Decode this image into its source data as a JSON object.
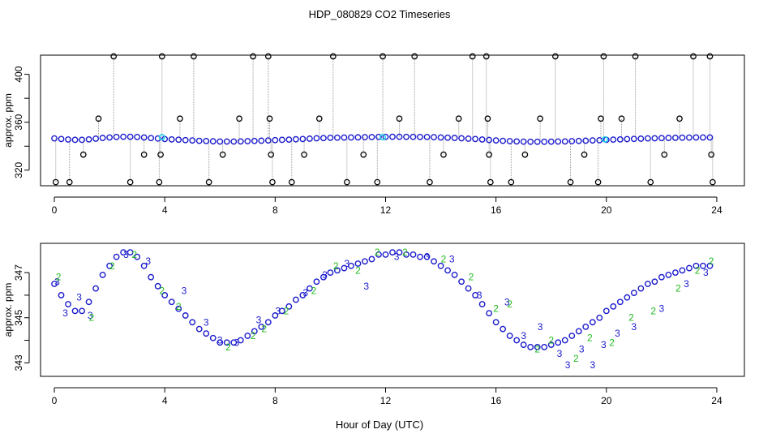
{
  "title": "HDP_080829  CO2 Timeseries",
  "xlabel": "Hour of Day (UTC)",
  "colors": {
    "blue": "#1a1acc",
    "cyan": "#22d3e6",
    "green": "#22bb22",
    "black": "#000000",
    "grey": "#9a9a9a"
  },
  "chart_data": [
    {
      "type": "scatter",
      "title": "HDP_080829  CO2 Timeseries",
      "xlabel": "",
      "ylabel": "approx. ppm",
      "xlim": [
        -0.5,
        25
      ],
      "ylim": [
        307,
        416
      ],
      "xticks": [
        0,
        4,
        8,
        12,
        16,
        20,
        24
      ],
      "yticks": [
        320,
        360,
        400
      ],
      "yminor": [
        340,
        380
      ],
      "grid": false,
      "series": [
        {
          "marker": "circle-blue",
          "description_of_values": "",
          "x": [
            0.0,
            0.25,
            0.5,
            0.75,
            1.0,
            1.25,
            1.5,
            1.75,
            2.0,
            2.25,
            2.5,
            2.75,
            3.0,
            3.25,
            3.5,
            3.75,
            4.0,
            4.25,
            4.5,
            4.75,
            5.0,
            5.25,
            5.5,
            5.75,
            6.0,
            6.25,
            6.5,
            6.75,
            7.0,
            7.25,
            7.5,
            7.75,
            8.0,
            8.25,
            8.5,
            8.75,
            9.0,
            9.25,
            9.5,
            9.75,
            10.0,
            10.25,
            10.5,
            10.75,
            11.0,
            11.25,
            11.5,
            11.75,
            12.0,
            12.25,
            12.5,
            12.75,
            13.0,
            13.25,
            13.5,
            13.75,
            14.0,
            14.25,
            14.5,
            14.75,
            15.0,
            15.25,
            15.5,
            15.75,
            16.0,
            16.25,
            16.5,
            16.75,
            17.0,
            17.25,
            17.5,
            17.75,
            18.0,
            18.25,
            18.5,
            18.75,
            19.0,
            19.25,
            19.5,
            19.75,
            20.0,
            20.25,
            20.5,
            20.75,
            21.0,
            21.25,
            21.5,
            21.75,
            22.0,
            22.25,
            22.5,
            22.75,
            23.0,
            23.25,
            23.5,
            23.75
          ],
          "y": [
            346.5,
            346.0,
            345.6,
            345.3,
            345.3,
            345.7,
            346.3,
            346.9,
            347.3,
            347.7,
            347.9,
            347.9,
            347.7,
            347.3,
            346.8,
            346.4,
            346.0,
            345.7,
            345.4,
            345.1,
            344.8,
            344.5,
            344.3,
            344.1,
            343.9,
            343.9,
            343.9,
            344.0,
            344.2,
            344.4,
            344.6,
            344.8,
            345.1,
            345.3,
            345.5,
            345.8,
            346.0,
            346.3,
            346.6,
            346.8,
            347.0,
            347.1,
            347.2,
            347.3,
            347.4,
            347.5,
            347.6,
            347.8,
            347.8,
            347.9,
            347.9,
            347.8,
            347.8,
            347.7,
            347.7,
            347.5,
            347.3,
            347.1,
            346.9,
            346.6,
            346.3,
            346.0,
            345.6,
            345.2,
            344.8,
            344.5,
            344.2,
            344.0,
            343.8,
            343.7,
            343.7,
            343.7,
            343.8,
            343.9,
            344.0,
            344.2,
            344.4,
            344.6,
            344.8,
            345.0,
            345.3,
            345.5,
            345.7,
            345.9,
            346.1,
            346.3,
            346.5,
            346.6,
            346.8,
            346.9,
            347.0,
            347.1,
            347.2,
            347.3,
            347.3,
            347.3
          ]
        },
        {
          "marker": "circle-black-outlier",
          "description_of_values": "",
          "x": [
            0.05,
            0.55,
            1.05,
            1.6,
            2.15,
            2.75,
            3.25,
            3.8,
            3.85,
            3.9,
            4.55,
            5.05,
            5.6,
            6.1,
            6.7,
            7.2,
            7.75,
            7.8,
            7.85,
            7.9,
            8.6,
            9.05,
            9.6,
            10.1,
            10.6,
            11.2,
            11.7,
            11.9,
            12.5,
            13.05,
            13.6,
            14.1,
            14.65,
            15.15,
            15.65,
            15.7,
            15.75,
            15.8,
            16.55,
            17.05,
            17.6,
            18.15,
            18.7,
            19.2,
            19.7,
            19.8,
            19.9,
            20.55,
            21.05,
            21.6,
            22.1,
            22.65,
            23.15,
            23.75,
            23.8,
            23.85
          ],
          "y": [
            310,
            310,
            333,
            363,
            415,
            310,
            333,
            310,
            333,
            415,
            363,
            415,
            310,
            333,
            363,
            415,
            415,
            363,
            333,
            310,
            310,
            333,
            363,
            415,
            310,
            333,
            310,
            415,
            363,
            415,
            310,
            333,
            363,
            415,
            415,
            363,
            333,
            310,
            310,
            333,
            363,
            415,
            310,
            333,
            310,
            363,
            415,
            363,
            415,
            310,
            333,
            363,
            415,
            415,
            333,
            310
          ]
        },
        {
          "marker": "circle-cyan",
          "description_of_values": "",
          "x": [
            3.9,
            11.9,
            19.95
          ],
          "y": [
            347.5,
            347.5,
            345.7
          ]
        }
      ]
    },
    {
      "type": "scatter",
      "title": "",
      "xlabel": "Hour of Day (UTC)",
      "ylabel": "approx. ppm",
      "xlim": [
        -0.5,
        25
      ],
      "ylim": [
        342.4,
        348.3
      ],
      "xticks": [
        0,
        4,
        8,
        12,
        16,
        20,
        24
      ],
      "yticks": [
        343,
        345,
        347
      ],
      "yminor": [
        344,
        346
      ],
      "grid": false,
      "series": [
        {
          "marker": "circle-blue",
          "description_of_values": "",
          "x": [
            0.0,
            0.25,
            0.5,
            0.75,
            1.0,
            1.25,
            1.5,
            1.75,
            2.0,
            2.25,
            2.5,
            2.75,
            3.0,
            3.25,
            3.5,
            3.75,
            4.0,
            4.25,
            4.5,
            4.75,
            5.0,
            5.25,
            5.5,
            5.75,
            6.0,
            6.25,
            6.5,
            6.75,
            7.0,
            7.25,
            7.5,
            7.75,
            8.0,
            8.25,
            8.5,
            8.75,
            9.0,
            9.25,
            9.5,
            9.75,
            10.0,
            10.25,
            10.5,
            10.75,
            11.0,
            11.25,
            11.5,
            11.75,
            12.0,
            12.25,
            12.5,
            12.75,
            13.0,
            13.25,
            13.5,
            13.75,
            14.0,
            14.25,
            14.5,
            14.75,
            15.0,
            15.25,
            15.5,
            15.75,
            16.0,
            16.25,
            16.5,
            16.75,
            17.0,
            17.25,
            17.5,
            17.75,
            18.0,
            18.25,
            18.5,
            18.75,
            19.0,
            19.25,
            19.5,
            19.75,
            20.0,
            20.25,
            20.5,
            20.75,
            21.0,
            21.25,
            21.5,
            21.75,
            22.0,
            22.25,
            22.5,
            22.75,
            23.0,
            23.25,
            23.5,
            23.75
          ],
          "y": [
            346.5,
            346.0,
            345.6,
            345.3,
            345.3,
            345.7,
            346.3,
            346.9,
            347.3,
            347.7,
            347.9,
            347.9,
            347.7,
            347.3,
            346.8,
            346.4,
            346.0,
            345.7,
            345.4,
            345.1,
            344.8,
            344.5,
            344.3,
            344.1,
            343.9,
            343.9,
            343.9,
            344.0,
            344.2,
            344.4,
            344.6,
            344.8,
            345.1,
            345.3,
            345.5,
            345.8,
            346.0,
            346.3,
            346.6,
            346.8,
            347.0,
            347.1,
            347.2,
            347.3,
            347.4,
            347.5,
            347.6,
            347.8,
            347.8,
            347.9,
            347.9,
            347.8,
            347.8,
            347.7,
            347.7,
            347.5,
            347.3,
            347.1,
            346.9,
            346.6,
            346.3,
            346.0,
            345.6,
            345.2,
            344.8,
            344.5,
            344.2,
            344.0,
            343.8,
            343.7,
            343.7,
            343.7,
            343.8,
            343.9,
            344.0,
            344.2,
            344.4,
            344.6,
            344.8,
            345.0,
            345.3,
            345.5,
            345.7,
            345.9,
            346.1,
            346.3,
            346.5,
            346.6,
            346.8,
            346.9,
            347.0,
            347.1,
            347.2,
            347.3,
            347.3,
            347.3
          ]
        },
        {
          "marker": "text-3-blue",
          "description_of_values": "",
          "x": [
            0.1,
            0.4,
            0.9,
            1.3,
            2.6,
            3.4,
            4.7,
            5.5,
            6.0,
            6.6,
            7.4,
            8.1,
            9.1,
            9.8,
            10.6,
            11.3,
            12.4,
            13.5,
            14.4,
            15.4,
            16.4,
            17.0,
            17.6,
            18.3,
            18.6,
            19.1,
            19.5,
            19.9,
            20.4,
            21.0,
            22.0,
            22.9,
            23.6
          ],
          "y": [
            346.6,
            345.2,
            345.9,
            345.1,
            347.8,
            347.5,
            346.2,
            344.8,
            344.0,
            343.9,
            344.9,
            345.3,
            346.1,
            346.9,
            347.4,
            346.4,
            347.7,
            347.7,
            347.6,
            346.0,
            345.7,
            344.2,
            344.6,
            343.4,
            342.9,
            343.6,
            342.9,
            343.8,
            344.3,
            344.6,
            345.4,
            346.5,
            347.0
          ]
        },
        {
          "marker": "text-2-green",
          "description_of_values": "",
          "x": [
            0.15,
            1.35,
            2.1,
            2.9,
            3.9,
            4.5,
            6.3,
            7.2,
            7.6,
            8.4,
            9.4,
            10.2,
            11.0,
            11.7,
            12.7,
            14.1,
            15.1,
            16.0,
            16.5,
            17.5,
            18.0,
            18.9,
            19.4,
            20.2,
            20.9,
            21.7,
            22.6,
            23.3,
            23.8
          ],
          "y": [
            346.8,
            345.0,
            347.3,
            347.8,
            346.2,
            345.5,
            343.7,
            344.2,
            344.5,
            345.3,
            346.2,
            347.3,
            347.1,
            347.9,
            347.9,
            347.6,
            346.8,
            345.4,
            345.6,
            343.6,
            344.0,
            343.2,
            344.1,
            343.9,
            345.0,
            345.3,
            346.3,
            347.1,
            347.5
          ]
        }
      ]
    }
  ]
}
